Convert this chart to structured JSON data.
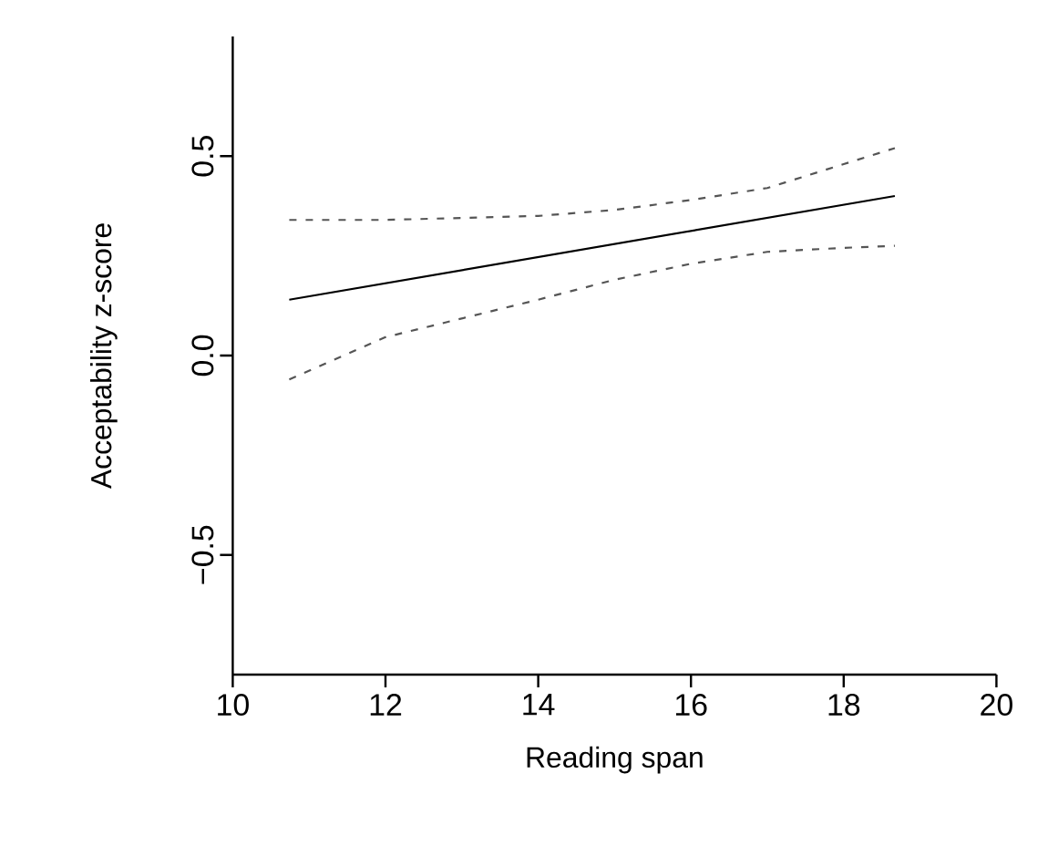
{
  "chart_data": {
    "type": "line",
    "xlabel": "Reading span",
    "ylabel": "Acceptability z-score",
    "series": [
      {
        "x": [
          10.74,
          18.67
        ],
        "values": [
          0.14,
          0.4
        ],
        "color": "#000000",
        "line_style": "solid"
      },
      {
        "x": [
          10.74,
          12,
          14,
          15,
          16,
          17,
          18,
          18.67
        ],
        "values": [
          0.34,
          0.34,
          0.35,
          0.365,
          0.39,
          0.42,
          0.48,
          0.52
        ],
        "color": "#555555",
        "line_style": "dashed"
      },
      {
        "x": [
          10.74,
          12,
          14,
          15,
          16,
          17,
          18,
          18.67
        ],
        "values": [
          -0.06,
          0.046,
          0.14,
          0.19,
          0.23,
          0.26,
          0.27,
          0.275
        ],
        "color": "#555555",
        "line_style": "dashed"
      }
    ],
    "xlim": [
      10,
      20
    ],
    "ylim": [
      -0.8,
      0.8
    ],
    "xticks": [
      10,
      12,
      14,
      16,
      18,
      20
    ],
    "yticks": [
      {
        "value": -0.5,
        "label": "−0.5"
      },
      {
        "value": 0,
        "label": "0.0"
      },
      {
        "value": 0.5,
        "label": "0.5"
      }
    ],
    "marker": "none"
  }
}
